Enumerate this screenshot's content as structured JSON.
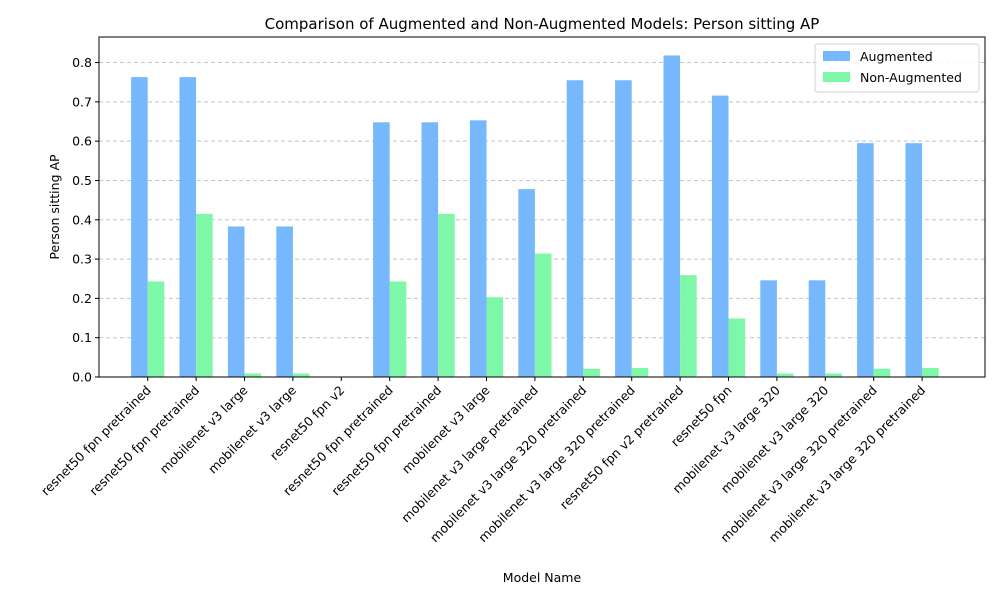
{
  "chart_data": {
    "type": "bar",
    "title": "Comparison of Augmented and Non-Augmented Models: Person sitting AP",
    "xlabel": "Model Name",
    "ylabel": "Person sitting AP",
    "ylim": [
      0,
      0.865
    ],
    "yticks": [
      "0.0",
      "0.1",
      "0.2",
      "0.3",
      "0.4",
      "0.5",
      "0.6",
      "0.7",
      "0.8"
    ],
    "grid": "y-dashed",
    "legend_position": "top-right",
    "categories": [
      "resnet50 fpn pretrained",
      "resnet50 fpn pretrained",
      "mobilenet v3 large",
      "mobilenet v3 large",
      "resnet50 fpn v2",
      "resnet50 fpn pretrained",
      "resnet50 fpn pretrained",
      "mobilenet v3 large",
      "mobilenet v3 large pretrained",
      "mobilenet v3 large 320 pretrained",
      "mobilenet v3 large 320 pretrained",
      "resnet50 fpn v2 pretrained",
      "resnet50 fpn",
      "mobilenet v3 large 320",
      "mobilenet v3 large 320",
      "mobilenet v3 large 320 pretrained",
      "mobilenet v3 large 320 pretrained"
    ],
    "series": [
      {
        "name": "Augmented",
        "color": "#77b8fc",
        "values": [
          0.763,
          0.763,
          0.383,
          0.383,
          0.0,
          0.648,
          0.648,
          0.653,
          0.478,
          0.755,
          0.755,
          0.818,
          0.716,
          0.246,
          0.246,
          0.595,
          0.595
        ]
      },
      {
        "name": "Non-Augmented",
        "color": "#7ef7a9",
        "values": [
          0.243,
          0.415,
          0.009,
          0.009,
          0.0,
          0.243,
          0.415,
          0.203,
          0.314,
          0.021,
          0.023,
          0.259,
          0.149,
          0.009,
          0.009,
          0.021,
          0.023
        ]
      }
    ]
  }
}
